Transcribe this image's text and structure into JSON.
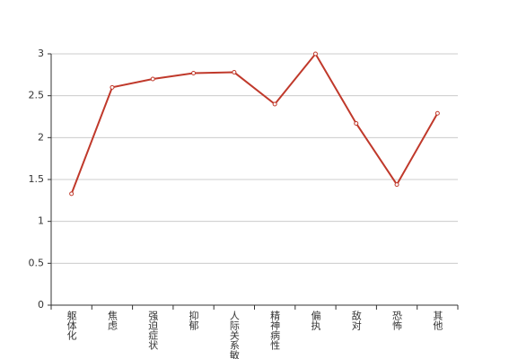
{
  "chart_data": {
    "type": "line",
    "categories": [
      "躯体化",
      "焦虑",
      "强迫症状",
      "抑郁",
      "人际关系敏感",
      "精神病性",
      "偏执",
      "敌对",
      "恐怖",
      "其他"
    ],
    "series": [
      {
        "color": "#c0392b",
        "values": [
          1.33,
          2.6,
          2.7,
          2.77,
          2.78,
          2.4,
          3.0,
          2.17,
          1.44,
          2.29
        ]
      }
    ],
    "ylim": [
      0,
      3
    ],
    "yticks": [
      0,
      0.5,
      1,
      1.5,
      2,
      2.5,
      3
    ],
    "grid": true
  }
}
